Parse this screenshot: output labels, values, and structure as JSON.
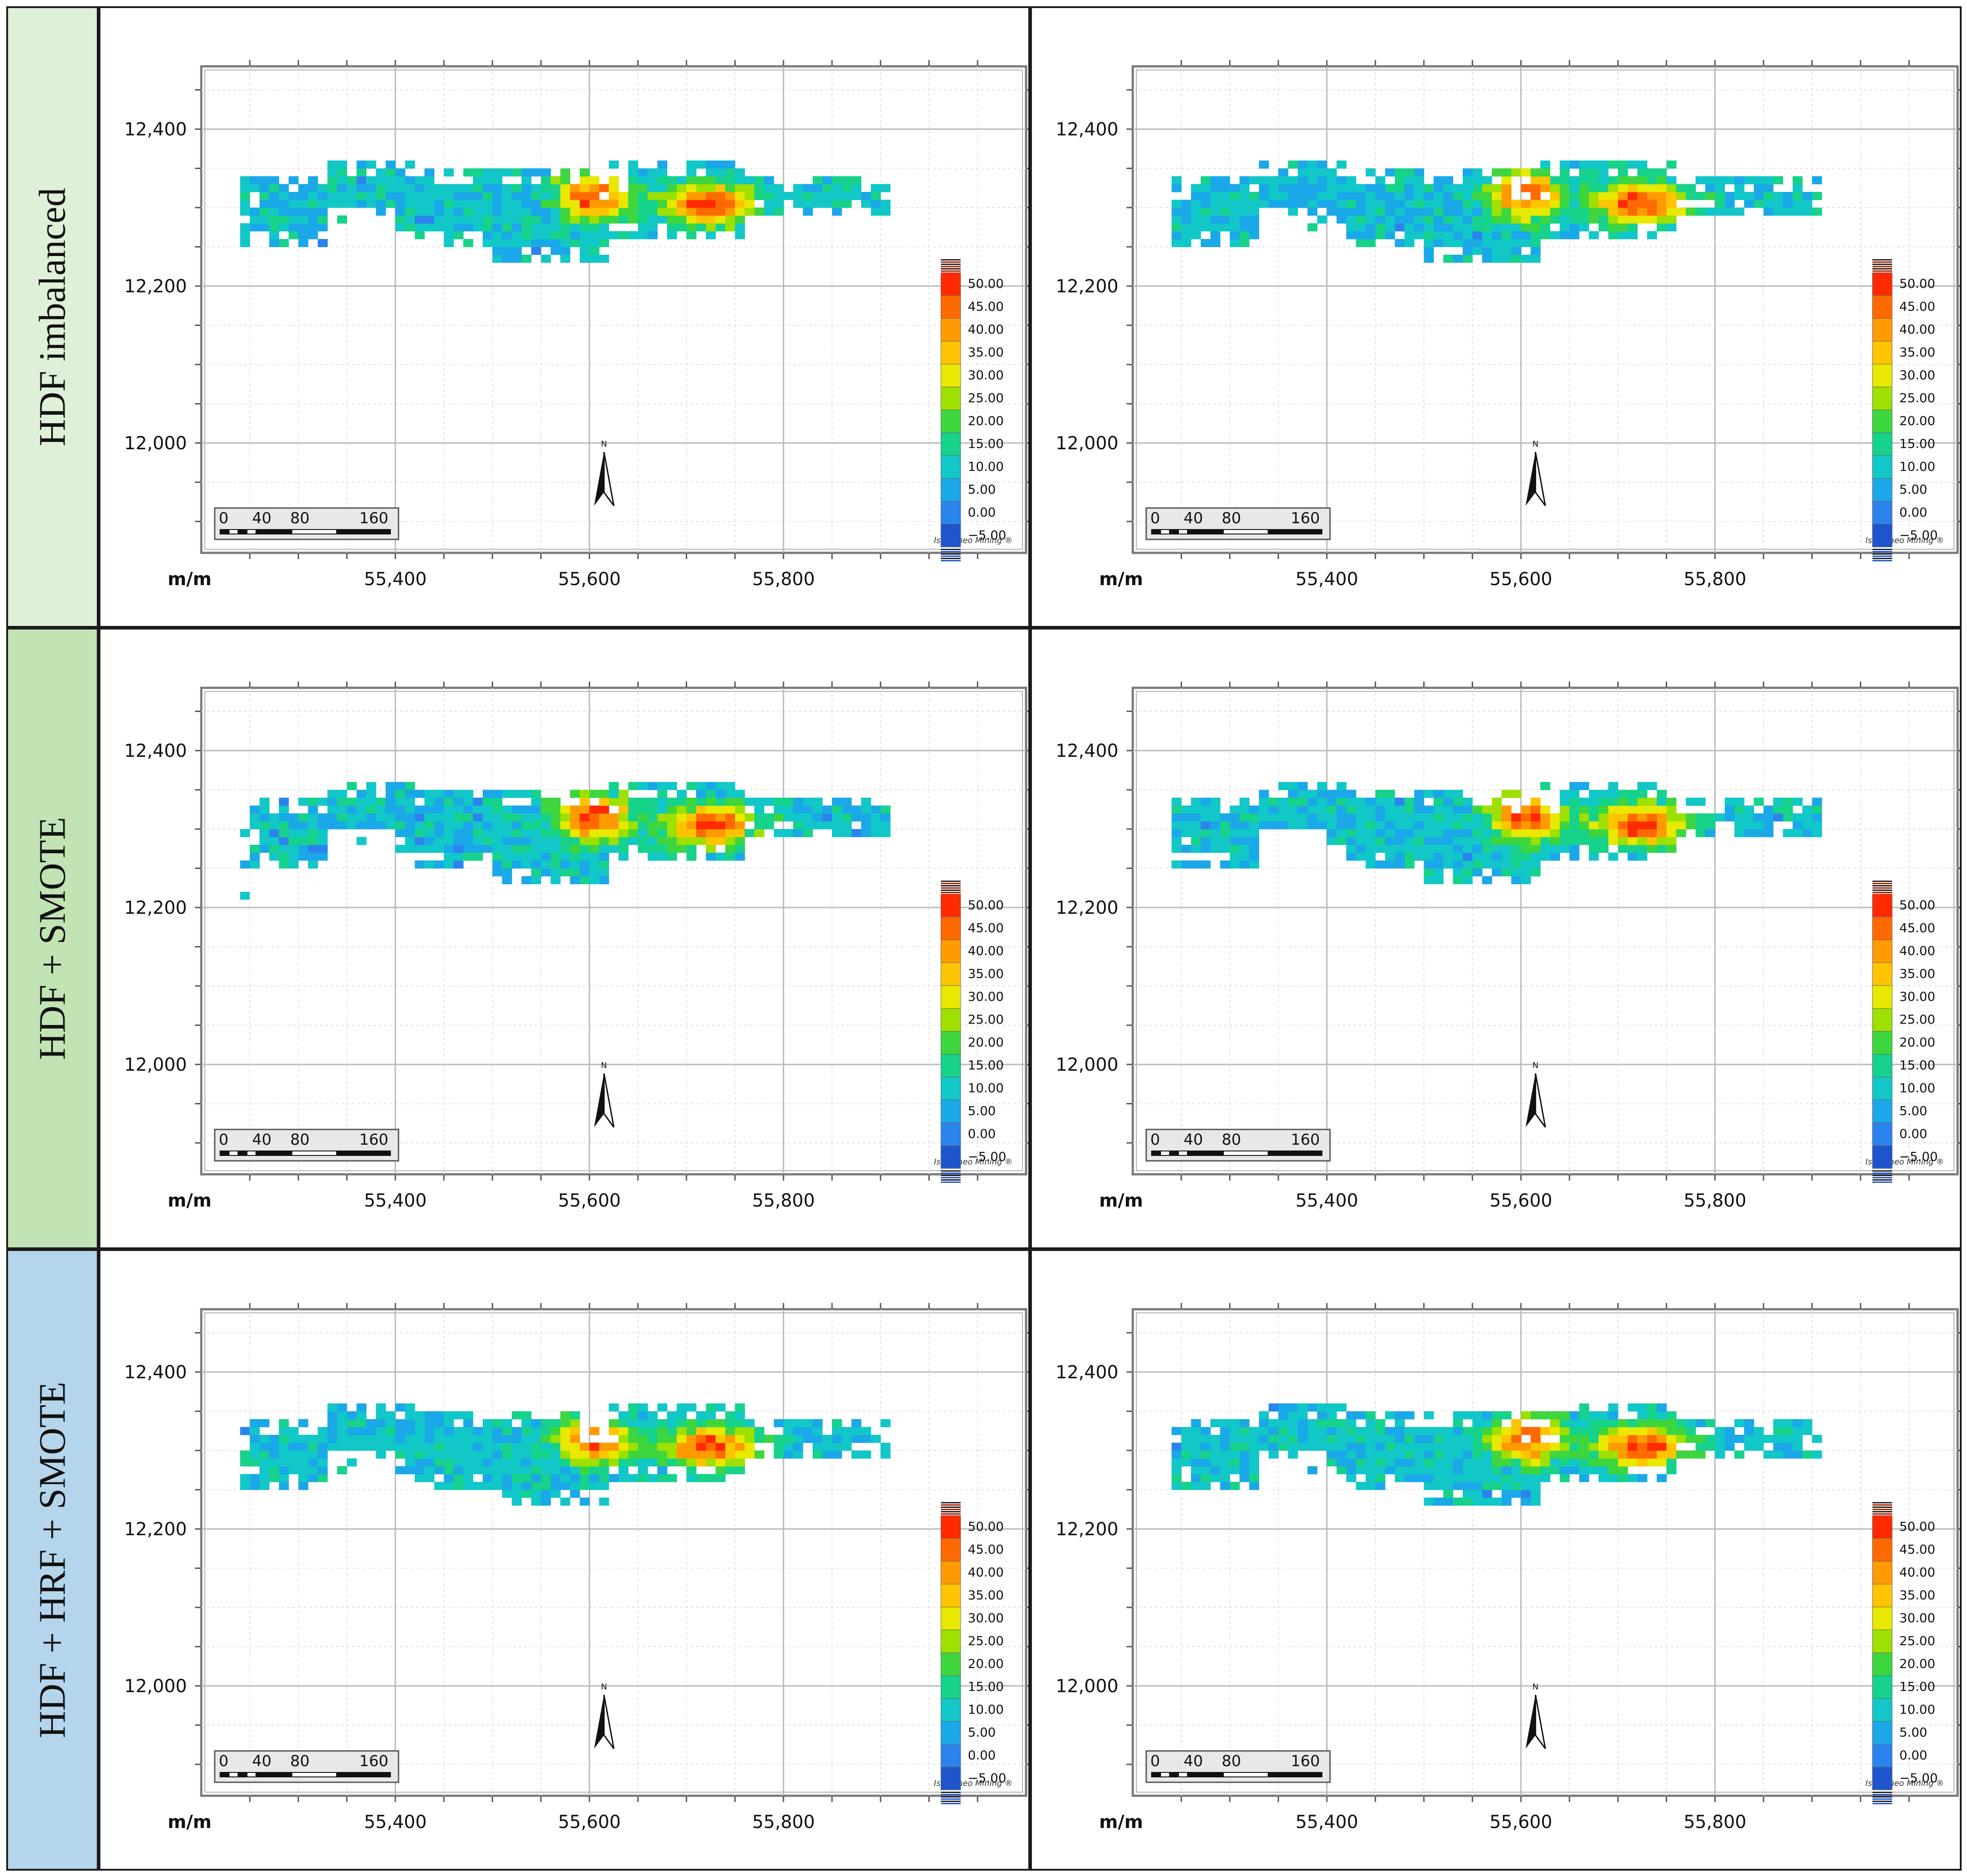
{
  "rows": [
    {
      "label": "HDF imbalanced",
      "color": "#dff0d8"
    },
    {
      "label": "HDF + SMOTE",
      "color": "#c2e3b4"
    },
    {
      "label": "HDF + HRF + SMOTE",
      "color": "#b5d5ec"
    }
  ],
  "map": {
    "x_ticks": [
      "55,400",
      "55,600",
      "55,800"
    ],
    "y_ticks": [
      "12,400",
      "12,200",
      "12,000"
    ],
    "unit_label": "m/m",
    "north_label": "N",
    "scale_bar_labels": [
      "0",
      "40",
      "80",
      "160"
    ],
    "credit": "Isatis.neo Mining ®"
  },
  "colorbar": {
    "labels": [
      "50.00",
      "45.00",
      "40.00",
      "35.00",
      "30.00",
      "25.00",
      "20.00",
      "15.00",
      "10.00",
      "5.00",
      "0.00",
      "-5.00"
    ],
    "colors": [
      "#ff2a00",
      "#ff6a00",
      "#ff9a00",
      "#ffc400",
      "#e8e800",
      "#9ee000",
      "#3ed63e",
      "#16d28a",
      "#12c7c7",
      "#1aa8e8",
      "#2b84ee",
      "#1f55cc"
    ]
  },
  "chart_data": {
    "type": "heatmap",
    "x_range": [
      55200,
      56050
    ],
    "y_range": [
      11860,
      12480
    ],
    "value_range": [
      -5,
      50
    ],
    "panels": [
      {
        "row": "HDF imbalanced",
        "col": 1
      },
      {
        "row": "HDF imbalanced",
        "col": 2
      },
      {
        "row": "HDF + SMOTE",
        "col": 1
      },
      {
        "row": "HDF + SMOTE",
        "col": 2
      },
      {
        "row": "HDF + HRF + SMOTE",
        "col": 1
      },
      {
        "row": "HDF + HRF + SMOTE",
        "col": 2
      }
    ]
  }
}
